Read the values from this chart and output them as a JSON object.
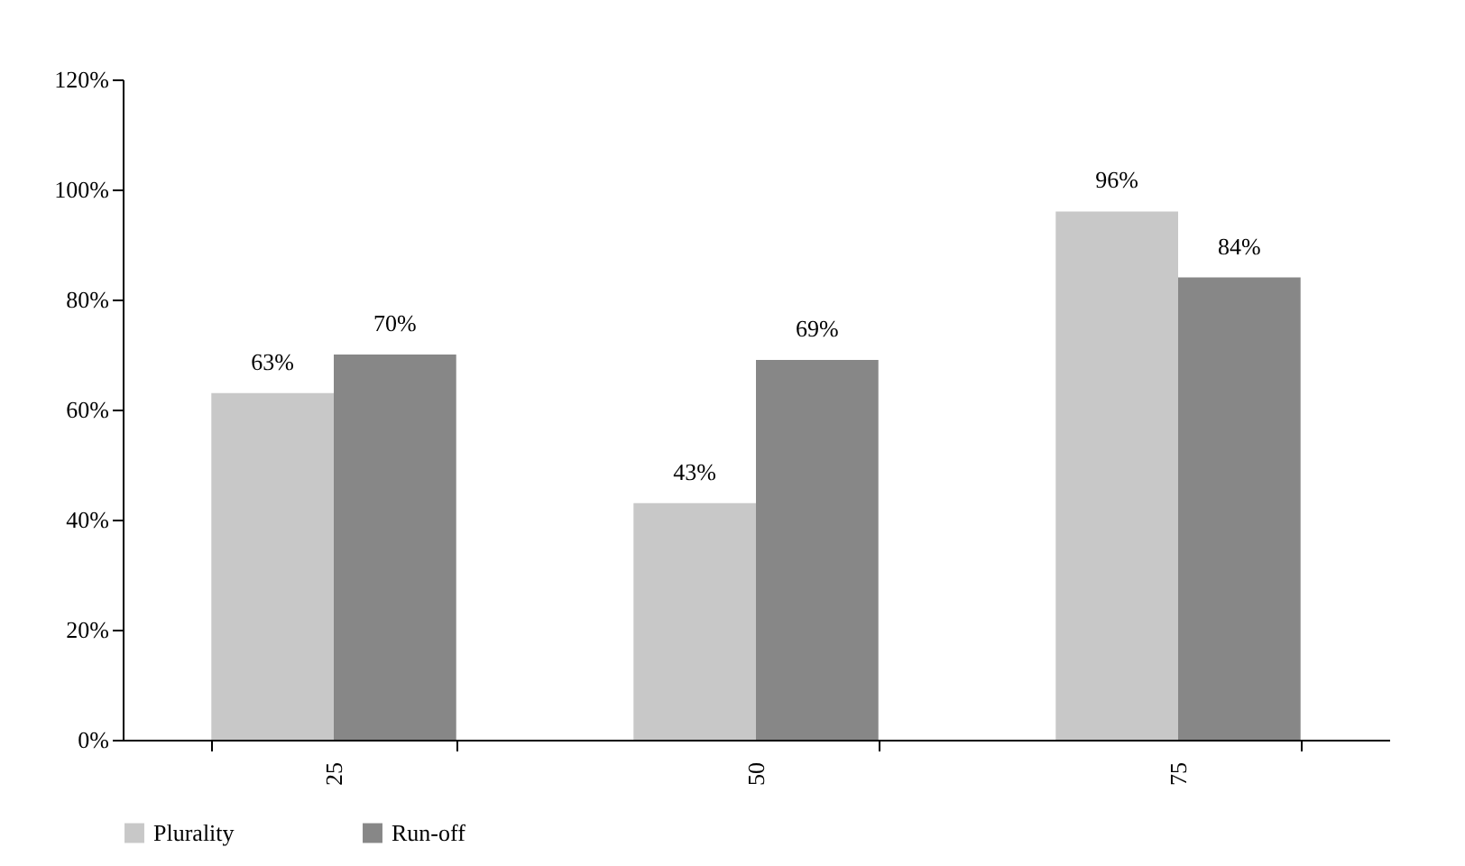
{
  "chart_data": {
    "type": "bar",
    "categories": [
      "25",
      "50",
      "75"
    ],
    "series": [
      {
        "name": "Plurality",
        "color": "#c8c8c8",
        "values": [
          63,
          43,
          96
        ],
        "value_labels": [
          "63%",
          "43%",
          "96%"
        ]
      },
      {
        "name": "Run-off",
        "color": "#878787",
        "values": [
          70,
          69,
          84
        ],
        "value_labels": [
          "70%",
          "69%",
          "84%"
        ]
      }
    ],
    "ylim": [
      0,
      120
    ],
    "yticks": [
      {
        "value": 0,
        "label": "0%"
      },
      {
        "value": 20,
        "label": "20%"
      },
      {
        "value": 40,
        "label": "40%"
      },
      {
        "value": 60,
        "label": "60%"
      },
      {
        "value": 80,
        "label": "80%"
      },
      {
        "value": 100,
        "label": "100%"
      },
      {
        "value": 120,
        "label": "120%"
      }
    ],
    "grid": false,
    "legend": "bottom"
  }
}
